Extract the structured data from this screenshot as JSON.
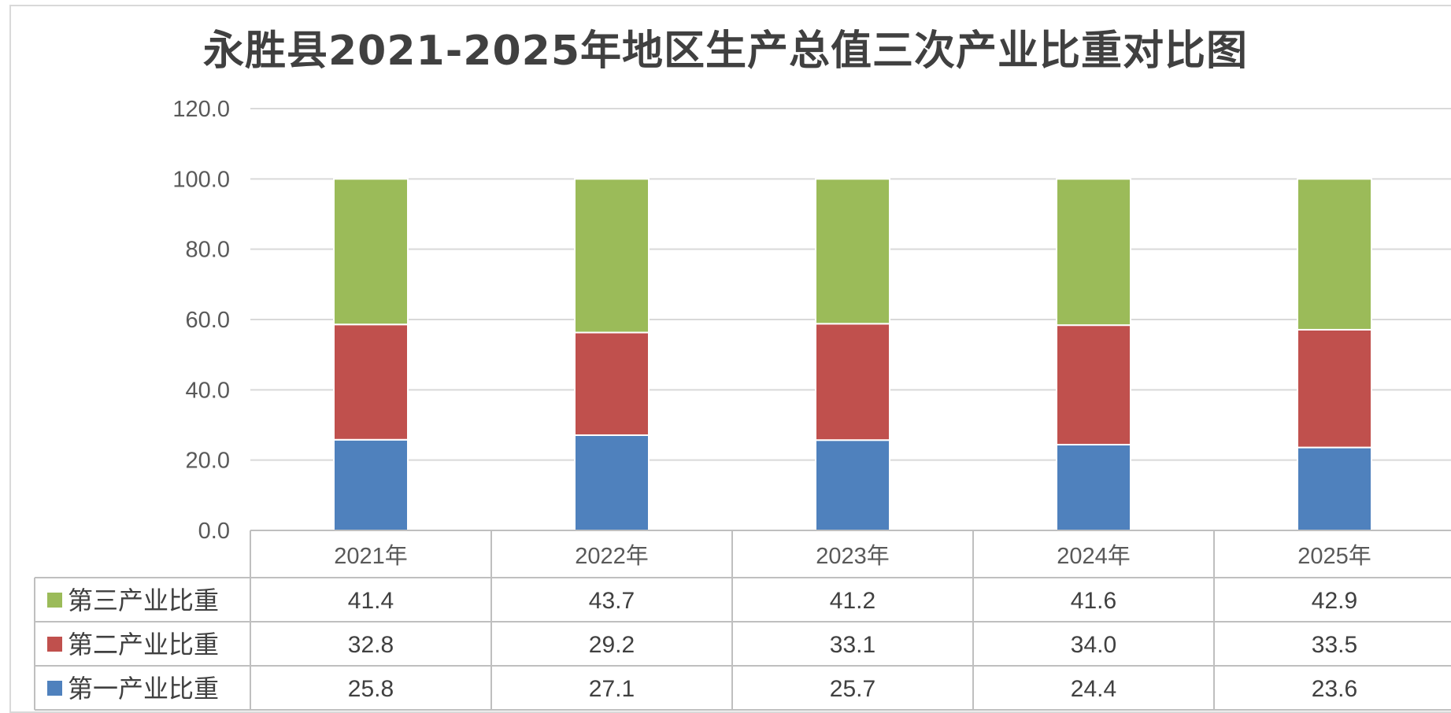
{
  "chart_data": {
    "type": "bar",
    "stacked": true,
    "title": "永胜县2021-2025年地区生产总值三次产业比重对比图",
    "categories": [
      "2021年",
      "2022年",
      "2023年",
      "2024年",
      "2025年"
    ],
    "ylim": [
      0,
      120
    ],
    "yticks": [
      "0.0",
      "20.0",
      "40.0",
      "60.0",
      "80.0",
      "100.0",
      "120.0"
    ],
    "grid": true,
    "legend": "data-table",
    "series": [
      {
        "name": "第一产业比重",
        "color": "#4f81bd",
        "values": [
          25.8,
          27.1,
          25.7,
          24.4,
          23.6
        ],
        "labels": [
          "25.8",
          "27.1",
          "25.7",
          "24.4",
          "23.6"
        ]
      },
      {
        "name": "第二产业比重",
        "color": "#c0504d",
        "values": [
          32.8,
          29.2,
          33.1,
          34.0,
          33.5
        ],
        "labels": [
          "32.8",
          "29.2",
          "33.1",
          "34.0",
          "33.5"
        ]
      },
      {
        "name": "第三产业比重",
        "color": "#9bbb59",
        "values": [
          41.4,
          43.7,
          41.2,
          41.6,
          42.9
        ],
        "labels": [
          "41.4",
          "43.7",
          "41.2",
          "41.6",
          "42.9"
        ]
      }
    ]
  }
}
